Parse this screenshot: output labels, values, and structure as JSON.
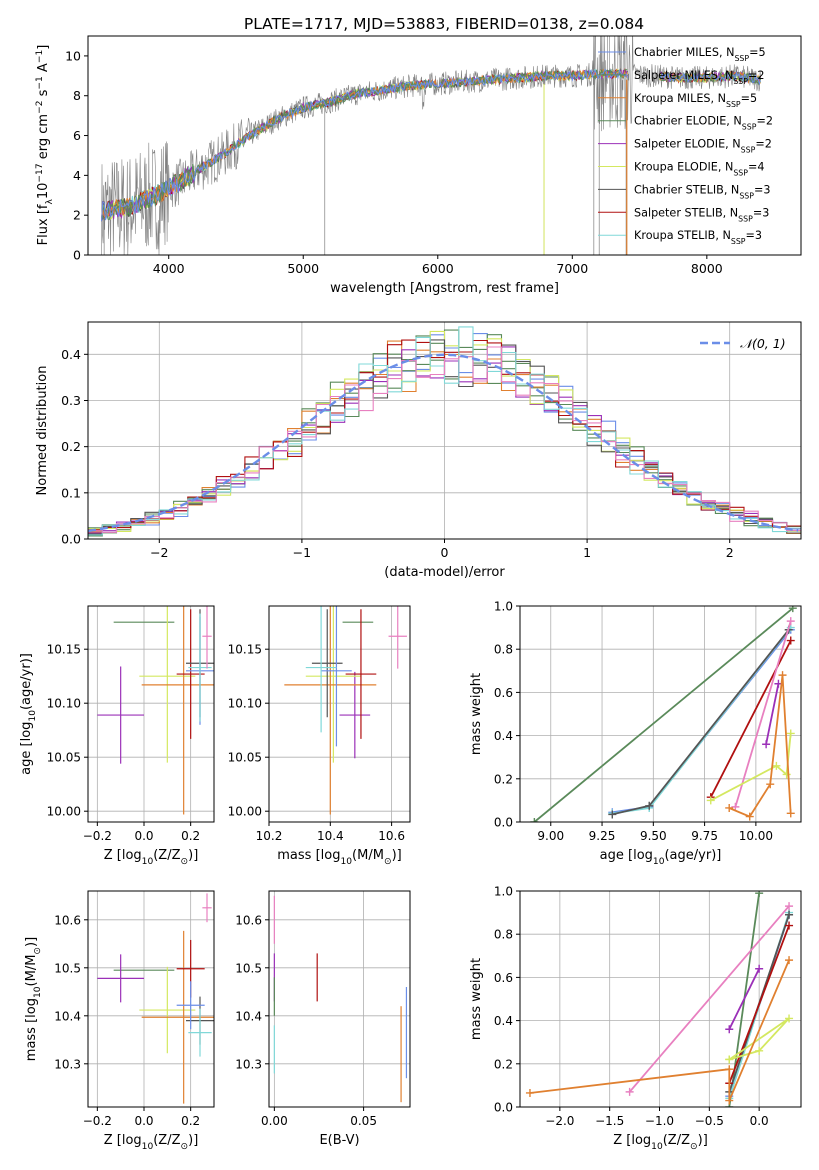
{
  "figure_title": "PLATE=1717, MJD=53883, FIBERID=0138, z=0.084",
  "colors": {
    "chabrier_miles": "#6b8ee8",
    "salpeter_miles": "#5a8a5a",
    "kroupa_miles": "#e08030",
    "chabrier_elodie": "#5a8a5a",
    "salpeter_elodie": "#9b30b8",
    "kroupa_elodie": "#d4e860",
    "chabrier_stelib": "#555555",
    "salpeter_stelib": "#b01010",
    "kroupa_stelib": "#80d8d8",
    "pink": "#e880c0",
    "data": "#808080",
    "normal": "#6b8ee8"
  },
  "chart_data": [
    {
      "id": "spectrum",
      "type": "line",
      "xlabel": "wavelength [Angstrom, rest frame]",
      "ylabel": "Flux [f$_\\lambda$10$^{-17}$ erg cm$^{-2}$ s$^{-1}$ A$^{-1}$]",
      "ylabel_parts": [
        "Flux [f",
        "λ",
        "10",
        "−17",
        " erg cm",
        "−2",
        " s",
        "−1",
        " A",
        "−1",
        "]"
      ],
      "xlim": [
        3400,
        8700
      ],
      "ylim": [
        0,
        11
      ],
      "xticks": [
        4000,
        5000,
        6000,
        7000,
        8000
      ],
      "yticks": [
        0,
        2,
        4,
        6,
        8,
        10
      ],
      "legend_position": "upper-right",
      "legend": [
        {
          "label": "Chabrier MILES, N",
          "sub": "SSP",
          "tail": "=5",
          "color": "#6b8ee8"
        },
        {
          "label": "Salpeter MILES, N",
          "sub": "SSP",
          "tail": "=2",
          "color": "#5a8a5a"
        },
        {
          "label": "Kroupa MILES, N",
          "sub": "SSP",
          "tail": "=5",
          "color": "#e08030"
        },
        {
          "label": "Chabrier ELODIE, N",
          "sub": "SSP",
          "tail": "=2",
          "color": "#5a8a5a"
        },
        {
          "label": "Salpeter ELODIE, N",
          "sub": "SSP",
          "tail": "=2",
          "color": "#9b30b8"
        },
        {
          "label": "Kroupa ELODIE, N",
          "sub": "SSP",
          "tail": "=4",
          "color": "#d4e860"
        },
        {
          "label": "Chabrier STELIB, N",
          "sub": "SSP",
          "tail": "=3",
          "color": "#555555"
        },
        {
          "label": "Salpeter STELIB, N",
          "sub": "SSP",
          "tail": "=3",
          "color": "#b01010"
        },
        {
          "label": "Kroupa STELIB, N",
          "sub": "SSP",
          "tail": "=3",
          "color": "#80d8d8"
        }
      ],
      "continuum": [
        [
          3500,
          2.2
        ],
        [
          3700,
          2.4
        ],
        [
          3900,
          3.0
        ],
        [
          4000,
          3.4
        ],
        [
          4100,
          3.7
        ],
        [
          4200,
          4.2
        ],
        [
          4400,
          5.0
        ],
        [
          4600,
          6.0
        ],
        [
          4800,
          6.8
        ],
        [
          5000,
          7.4
        ],
        [
          5200,
          7.7
        ],
        [
          5400,
          8.1
        ],
        [
          5600,
          8.3
        ],
        [
          5800,
          8.5
        ],
        [
          6000,
          8.6
        ],
        [
          6200,
          8.7
        ],
        [
          6400,
          8.8
        ],
        [
          6600,
          8.9
        ],
        [
          6800,
          9.0
        ],
        [
          7000,
          9.0
        ],
        [
          7200,
          9.1
        ],
        [
          7400,
          9.1
        ],
        [
          7600,
          9.0
        ],
        [
          7800,
          8.9
        ],
        [
          8000,
          8.9
        ],
        [
          8200,
          9.0
        ],
        [
          8400,
          8.8
        ]
      ]
    },
    {
      "id": "residuals",
      "type": "line",
      "xlabel": "(data-model)/error",
      "ylabel": "Normed distribution",
      "xlim": [
        -2.5,
        2.5
      ],
      "ylim": [
        0,
        0.47
      ],
      "xticks": [
        -2,
        -1,
        0,
        1,
        2
      ],
      "yticks": [
        0.0,
        0.1,
        0.2,
        0.3,
        0.4
      ],
      "grid": true,
      "legend_position": "upper-right",
      "legend_label": "𝒩(0, 1)",
      "bin_width": 0.1,
      "histogram_series": [
        {
          "name": "Chabrier MILES",
          "color": "#6b8ee8"
        },
        {
          "name": "Salpeter MILES",
          "color": "#5a8a5a"
        },
        {
          "name": "Kroupa MILES",
          "color": "#e08030"
        },
        {
          "name": "Chabrier ELODIE",
          "color": "#5a8a5a"
        },
        {
          "name": "Salpeter ELODIE",
          "color": "#9b30b8"
        },
        {
          "name": "Kroupa ELODIE",
          "color": "#d4e860"
        },
        {
          "name": "Chabrier STELIB",
          "color": "#555555"
        },
        {
          "name": "Salpeter STELIB",
          "color": "#b01010"
        },
        {
          "name": "Kroupa STELIB",
          "color": "#80d8d8"
        },
        {
          "name": "extra",
          "color": "#e880c0"
        }
      ]
    },
    {
      "id": "age_vs_Z",
      "type": "scatter",
      "xlabel": "Z [log$_{10}$(Z/Z$_\\odot$)]",
      "ylabel": "age  [log$_{10}$(age/yr)]",
      "xlim": [
        -0.24,
        0.3
      ],
      "ylim": [
        9.99,
        10.19
      ],
      "xticks": [
        -0.2,
        0.0,
        0.2
      ],
      "yticks": [
        10.0,
        10.05,
        10.1,
        10.15
      ],
      "grid": true,
      "points": [
        {
          "x": 0.0,
          "y": 10.175,
          "xerr": 0.13,
          "yerr": 0.0,
          "color": "#5a8a5a"
        },
        {
          "x": -0.1,
          "y": 10.089,
          "xerr": 0.1,
          "yerr": 0.045,
          "color": "#9b30b8"
        },
        {
          "x": 0.1,
          "y": 10.125,
          "xerr": 0.12,
          "yerr": 0.08,
          "color": "#d4e860"
        },
        {
          "x": 0.17,
          "y": 10.117,
          "xerr": 0.18,
          "yerr": 0.12,
          "color": "#e08030"
        },
        {
          "x": 0.2,
          "y": 10.127,
          "xerr": 0.06,
          "yerr": 0.06,
          "color": "#b01010"
        },
        {
          "x": 0.24,
          "y": 10.137,
          "xerr": 0.06,
          "yerr": 0.05,
          "color": "#555555"
        },
        {
          "x": 0.24,
          "y": 10.13,
          "xerr": 0.06,
          "yerr": 0.05,
          "color": "#6b8ee8"
        },
        {
          "x": 0.24,
          "y": 10.133,
          "xerr": 0.05,
          "yerr": 0.05,
          "color": "#80d8d8"
        },
        {
          "x": 0.27,
          "y": 10.162,
          "xerr": 0.02,
          "yerr": 0.03,
          "color": "#e880c0"
        }
      ]
    },
    {
      "id": "age_vs_mass",
      "type": "scatter",
      "xlabel": "mass [log$_{10}$(M/M$_\\odot$)]",
      "ylabel": "",
      "xlim": [
        10.2,
        10.66
      ],
      "ylim": [
        9.99,
        10.19
      ],
      "xticks": [
        10.2,
        10.4,
        10.6
      ],
      "yticks": [
        10.0,
        10.05,
        10.1,
        10.15
      ],
      "grid": true,
      "points": [
        {
          "x": 10.49,
          "y": 10.175,
          "xerr": 0.05,
          "yerr": 0.0,
          "color": "#5a8a5a"
        },
        {
          "x": 10.48,
          "y": 10.089,
          "xerr": 0.05,
          "yerr": 0.04,
          "color": "#9b30b8"
        },
        {
          "x": 10.41,
          "y": 10.125,
          "xerr": 0.09,
          "yerr": 0.08,
          "color": "#d4e860"
        },
        {
          "x": 10.4,
          "y": 10.117,
          "xerr": 0.15,
          "yerr": 0.12,
          "color": "#e08030"
        },
        {
          "x": 10.5,
          "y": 10.127,
          "xerr": 0.05,
          "yerr": 0.06,
          "color": "#b01010"
        },
        {
          "x": 10.39,
          "y": 10.137,
          "xerr": 0.05,
          "yerr": 0.05,
          "color": "#555555"
        },
        {
          "x": 10.42,
          "y": 10.13,
          "xerr": 0.05,
          "yerr": 0.07,
          "color": "#6b8ee8"
        },
        {
          "x": 10.37,
          "y": 10.133,
          "xerr": 0.05,
          "yerr": 0.06,
          "color": "#80d8d8"
        },
        {
          "x": 10.62,
          "y": 10.162,
          "xerr": 0.03,
          "yerr": 0.03,
          "color": "#e880c0"
        }
      ]
    },
    {
      "id": "weight_vs_age",
      "type": "line",
      "xlabel": "age  [log$_{10}$(age/yr)]",
      "ylabel": "mass weight",
      "xlim": [
        8.85,
        10.22
      ],
      "ylim": [
        0,
        1.0
      ],
      "xticks": [
        9.0,
        9.25,
        9.5,
        9.75,
        10.0
      ],
      "yticks": [
        0.0,
        0.2,
        0.4,
        0.6,
        0.8,
        1.0
      ],
      "grid": true,
      "series": [
        {
          "name": "Salpeter MILES",
          "color": "#5a8a5a",
          "x": [
            8.92,
            10.18
          ],
          "y": [
            0.0,
            0.99
          ]
        },
        {
          "name": "Chabrier MILES",
          "color": "#6b8ee8",
          "x": [
            9.3,
            9.48,
            10.17
          ],
          "y": [
            0.045,
            0.07,
            0.89
          ]
        },
        {
          "name": "Kroupa STELIB",
          "color": "#80d8d8",
          "x": [
            9.3,
            9.48,
            10.17
          ],
          "y": [
            0.04,
            0.065,
            0.9
          ]
        },
        {
          "name": "Chabrier STELIB",
          "color": "#555555",
          "x": [
            9.3,
            9.48,
            10.16
          ],
          "y": [
            0.035,
            0.075,
            0.89
          ]
        },
        {
          "name": "Salpeter STELIB",
          "color": "#b01010",
          "x": [
            9.78,
            10.17
          ],
          "y": [
            0.115,
            0.84
          ]
        },
        {
          "name": "Salpeter ELODIE",
          "color": "#9b30b8",
          "x": [
            10.05,
            10.11
          ],
          "y": [
            0.36,
            0.64
          ]
        },
        {
          "name": "pink",
          "color": "#e880c0",
          "x": [
            9.9,
            10.17
          ],
          "y": [
            0.07,
            0.93
          ]
        },
        {
          "name": "Kroupa ELODIE",
          "color": "#d4e860",
          "x": [
            9.78,
            10.1,
            10.15,
            10.17
          ],
          "y": [
            0.1,
            0.26,
            0.22,
            0.41
          ]
        },
        {
          "name": "Kroupa MILES",
          "color": "#e08030",
          "x": [
            9.87,
            9.97,
            10.07,
            10.13,
            10.17
          ],
          "y": [
            0.065,
            0.025,
            0.175,
            0.68,
            0.04
          ]
        }
      ]
    },
    {
      "id": "mass_vs_Z",
      "type": "scatter",
      "xlabel": "Z [log$_{10}$(Z/Z$_\\odot$)]",
      "ylabel": "mass [log$_{10}$(M/M$_\\odot$)]",
      "xlim": [
        -0.24,
        0.3
      ],
      "ylim": [
        10.21,
        10.66
      ],
      "xticks": [
        -0.2,
        0.0,
        0.2
      ],
      "yticks": [
        10.3,
        10.4,
        10.5,
        10.6
      ],
      "grid": true,
      "points": [
        {
          "x": 0.0,
          "y": 10.495,
          "xerr": 0.13,
          "yerr": 0.0,
          "color": "#5a8a5a"
        },
        {
          "x": -0.1,
          "y": 10.478,
          "xerr": 0.1,
          "yerr": 0.05,
          "color": "#9b30b8"
        },
        {
          "x": 0.1,
          "y": 10.412,
          "xerr": 0.12,
          "yerr": 0.09,
          "color": "#d4e860"
        },
        {
          "x": 0.17,
          "y": 10.397,
          "xerr": 0.18,
          "yerr": 0.18,
          "color": "#e08030"
        },
        {
          "x": 0.2,
          "y": 10.498,
          "xerr": 0.06,
          "yerr": 0.06,
          "color": "#b01010"
        },
        {
          "x": 0.24,
          "y": 10.39,
          "xerr": 0.06,
          "yerr": 0.05,
          "color": "#555555"
        },
        {
          "x": 0.2,
          "y": 10.422,
          "xerr": 0.06,
          "yerr": 0.05,
          "color": "#6b8ee8"
        },
        {
          "x": 0.24,
          "y": 10.365,
          "xerr": 0.05,
          "yerr": 0.05,
          "color": "#80d8d8"
        },
        {
          "x": 0.27,
          "y": 10.625,
          "xerr": 0.02,
          "yerr": 0.03,
          "color": "#e880c0"
        }
      ]
    },
    {
      "id": "mass_vs_ebv",
      "type": "scatter",
      "xlabel": "E(B-V)",
      "ylabel": "",
      "xlim": [
        -0.003,
        0.076
      ],
      "ylim": [
        10.21,
        10.66
      ],
      "xticks": [
        0.0,
        0.05
      ],
      "yticks": [
        10.3,
        10.4,
        10.5,
        10.6
      ],
      "grid": true,
      "points": [
        {
          "x": 0.0,
          "y": 10.6,
          "xerr": 0,
          "yerr": 0.05,
          "color": "#e880c0"
        },
        {
          "x": 0.0,
          "y": 10.48,
          "xerr": 0,
          "yerr": 0.05,
          "color": "#9b30b8"
        },
        {
          "x": 0.0,
          "y": 10.44,
          "xerr": 0,
          "yerr": 0.04,
          "color": "#5a8a5a"
        },
        {
          "x": 0.0,
          "y": 10.33,
          "xerr": 0,
          "yerr": 0.05,
          "color": "#80d8d8"
        },
        {
          "x": 0.024,
          "y": 10.48,
          "xerr": 0,
          "yerr": 0.05,
          "color": "#b01010"
        },
        {
          "x": 0.071,
          "y": 10.32,
          "xerr": 0,
          "yerr": 0.1,
          "color": "#e08030"
        },
        {
          "x": 0.074,
          "y": 10.365,
          "xerr": 0,
          "yerr": 0.095,
          "color": "#6b8ee8"
        }
      ]
    },
    {
      "id": "weight_vs_Z",
      "type": "line",
      "xlabel": "Z [log$_{10}$(Z/Z$_\\odot$)]",
      "ylabel": "mass weight",
      "xlim": [
        -2.4,
        0.42
      ],
      "ylim": [
        0,
        1.0
      ],
      "xticks": [
        -2.0,
        -1.5,
        -1.0,
        -0.5,
        0.0
      ],
      "yticks": [
        0.0,
        0.2,
        0.4,
        0.6,
        0.8,
        1.0
      ],
      "grid": true,
      "series": [
        {
          "name": "Salpeter MILES",
          "color": "#5a8a5a",
          "x": [
            -0.3,
            0.0
          ],
          "y": [
            0.0,
            0.99
          ]
        },
        {
          "name": "Salpeter ELODIE",
          "color": "#9b30b8",
          "x": [
            -0.3,
            0.0
          ],
          "y": [
            0.36,
            0.64
          ]
        },
        {
          "name": "Chabrier MILES",
          "color": "#6b8ee8",
          "x": [
            -0.3,
            0.3
          ],
          "y": [
            0.05,
            0.89
          ]
        },
        {
          "name": "Kroupa STELIB",
          "color": "#80d8d8",
          "x": [
            -0.3,
            0.3
          ],
          "y": [
            0.04,
            0.9
          ]
        },
        {
          "name": "Chabrier STELIB",
          "color": "#555555",
          "x": [
            -0.3,
            0.3
          ],
          "y": [
            0.07,
            0.89
          ]
        },
        {
          "name": "Salpeter STELIB",
          "color": "#b01010",
          "x": [
            -0.3,
            0.3
          ],
          "y": [
            0.11,
            0.84
          ]
        },
        {
          "name": "pink",
          "color": "#e880c0",
          "x": [
            -1.3,
            0.3
          ],
          "y": [
            0.07,
            0.93
          ]
        },
        {
          "name": "Kroupa ELODIE",
          "color": "#d4e860",
          "x": [
            -0.3,
            0.0,
            0.3,
            -0.3
          ],
          "y": [
            0.22,
            0.26,
            0.41,
            0.22
          ]
        },
        {
          "name": "Kroupa MILES",
          "color": "#e08030",
          "x": [
            -2.3,
            -0.3,
            -0.3,
            0.3
          ],
          "y": [
            0.065,
            0.175,
            0.03,
            0.68
          ]
        }
      ]
    }
  ]
}
